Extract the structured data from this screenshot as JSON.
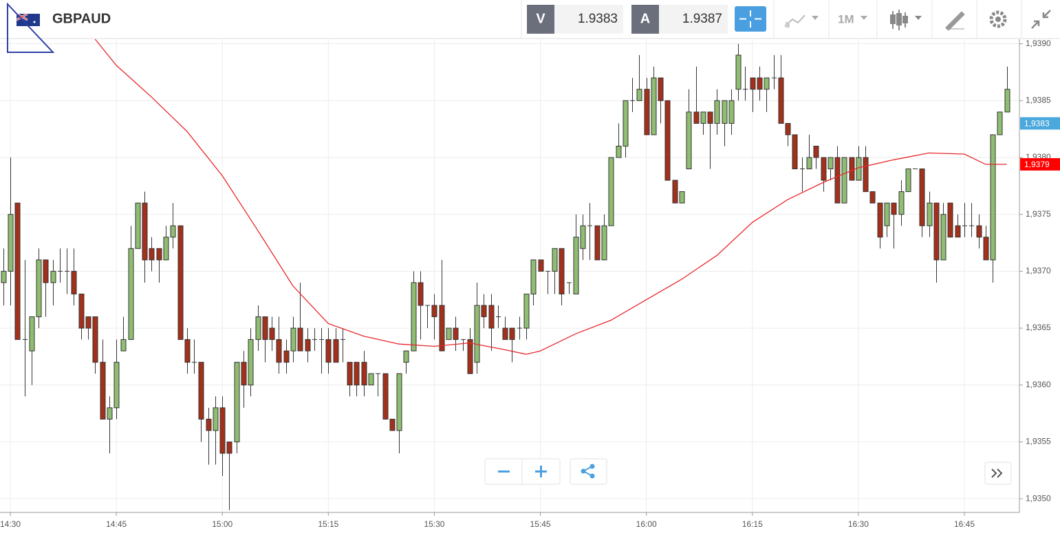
{
  "toolbar": {
    "symbol": "GBPAUD",
    "bid_label": "V",
    "bid": "1.9383",
    "ask_label": "A",
    "ask": "1.9387",
    "timeframe": "1M"
  },
  "chart_data": {
    "type": "candlestick",
    "ylim": [
      1.93488,
      1.93904
    ],
    "yticks": [
      {
        "value": 1.935,
        "label": "1,9350"
      },
      {
        "value": 1.9355,
        "label": "1,9355"
      },
      {
        "value": 1.936,
        "label": "1,9360"
      },
      {
        "value": 1.9365,
        "label": "1,9365"
      },
      {
        "value": 1.937,
        "label": "1,9370"
      },
      {
        "value": 1.9375,
        "label": "1,9375"
      },
      {
        "value": 1.938,
        "label": "1,9380"
      },
      {
        "value": 1.9385,
        "label": "1,9385"
      },
      {
        "value": 1.939,
        "label": "1,9390"
      }
    ],
    "xticks": [
      "14:30",
      "14:45",
      "15:00",
      "15:15",
      "15:30",
      "15:45",
      "16:00",
      "16:15",
      "16:30",
      "16:45"
    ],
    "grid": true,
    "up_color": "#8fbd72",
    "down_color": "#a3301b",
    "candles": {
      "x": [
        "14:29",
        "14:30",
        "14:31",
        "14:32",
        "14:33",
        "14:34",
        "14:35",
        "14:36",
        "14:37",
        "14:38",
        "14:39",
        "14:40",
        "14:41",
        "14:42",
        "14:43",
        "14:44",
        "14:45",
        "14:46",
        "14:47",
        "14:48",
        "14:49",
        "14:50",
        "14:51",
        "14:52",
        "14:53",
        "14:54",
        "14:55",
        "14:56",
        "14:57",
        "14:58",
        "14:59",
        "15:00",
        "15:01",
        "15:02",
        "15:03",
        "15:04",
        "15:05",
        "15:06",
        "15:07",
        "15:08",
        "15:09",
        "15:10",
        "15:11",
        "15:12",
        "15:13",
        "15:14",
        "15:15",
        "15:16",
        "15:17",
        "15:18",
        "15:19",
        "15:20",
        "15:21",
        "15:22",
        "15:23",
        "15:24",
        "15:25",
        "15:26",
        "15:27",
        "15:28",
        "15:29",
        "15:30",
        "15:31",
        "15:32",
        "15:33",
        "15:34",
        "15:35",
        "15:36",
        "15:37",
        "15:38",
        "15:39",
        "15:40",
        "15:41",
        "15:42",
        "15:43",
        "15:44",
        "15:45",
        "15:46",
        "15:47",
        "15:48",
        "15:49",
        "15:50",
        "15:51",
        "15:52",
        "15:53",
        "15:54",
        "15:55",
        "15:56",
        "15:57",
        "15:58",
        "15:59",
        "16:00",
        "16:01",
        "16:02",
        "16:03",
        "16:04",
        "16:05",
        "16:06",
        "16:07",
        "16:08",
        "16:09",
        "16:10",
        "16:11",
        "16:12",
        "16:13",
        "16:14",
        "16:15",
        "16:16",
        "16:17",
        "16:18",
        "16:19",
        "16:20",
        "16:21",
        "16:22",
        "16:23",
        "16:24",
        "16:25",
        "16:26",
        "16:27",
        "16:28",
        "16:29",
        "16:30",
        "16:31",
        "16:32",
        "16:33",
        "16:34",
        "16:35",
        "16:36",
        "16:37",
        "16:38",
        "16:39",
        "16:40",
        "16:41",
        "16:42",
        "16:43",
        "16:44",
        "16:45",
        "16:46",
        "16:47",
        "16:48",
        "16:49",
        "16:50",
        "16:51"
      ],
      "open": [
        1.9369,
        1.937,
        1.9376,
        1.9364,
        1.9363,
        1.9366,
        1.9371,
        1.9369,
        1.937,
        1.937,
        1.937,
        1.9368,
        1.9366,
        1.9366,
        1.9362,
        1.9357,
        1.9358,
        1.9363,
        1.9364,
        1.9372,
        1.9376,
        1.9372,
        1.9372,
        1.9371,
        1.9373,
        1.9374,
        1.9364,
        1.9362,
        1.9362,
        1.9357,
        1.9356,
        1.9358,
        1.9355,
        1.9355,
        1.9362,
        1.936,
        1.9364,
        1.9366,
        1.9365,
        1.9364,
        1.9363,
        1.9363,
        1.9365,
        1.9364,
        1.9364,
        1.9364,
        1.9364,
        1.9364,
        1.9364,
        1.9362,
        1.9362,
        1.9362,
        1.936,
        1.9361,
        1.9361,
        1.9357,
        1.9356,
        1.9362,
        1.9363,
        1.9369,
        1.9367,
        1.9367,
        1.9367,
        1.9364,
        1.9365,
        1.9364,
        1.9364,
        1.9362,
        1.9367,
        1.9367,
        1.9366,
        1.9365,
        1.9365,
        1.9365,
        1.9365,
        1.9368,
        1.9371,
        1.937,
        1.937,
        1.9372,
        1.9369,
        1.9368,
        1.9372,
        1.9374,
        1.9374,
        1.9371,
        1.9374,
        1.938,
        1.9381,
        1.9385,
        1.9385,
        1.9386,
        1.9382,
        1.9387,
        1.9385,
        1.9378,
        1.9376,
        1.9379,
        1.9384,
        1.9383,
        1.9384,
        1.9383,
        1.9383,
        1.9383,
        1.9386,
        1.9386,
        1.9387,
        1.9387,
        1.9386,
        1.9387,
        1.9387,
        1.9383,
        1.9382,
        1.9379,
        1.9379,
        1.9381,
        1.938,
        1.9379,
        1.938,
        1.9376,
        1.938,
        1.9378,
        1.938,
        1.9377,
        1.9376,
        1.9374,
        1.9376,
        1.9375,
        1.9377,
        1.9379,
        1.9379,
        1.9374,
        1.9376,
        1.9371,
        1.9376,
        1.9374,
        1.9374,
        1.9374,
        1.9374,
        1.9373,
        1.9371,
        1.9382,
        1.9384
      ],
      "high": [
        1.9372,
        1.938,
        1.9376,
        1.9371,
        1.9366,
        1.9372,
        1.9371,
        1.9371,
        1.9372,
        1.9372,
        1.9372,
        1.9368,
        1.9366,
        1.9366,
        1.9364,
        1.9359,
        1.9364,
        1.9366,
        1.9374,
        1.9376,
        1.9377,
        1.9373,
        1.9372,
        1.9374,
        1.9376,
        1.9374,
        1.9365,
        1.9364,
        1.9362,
        1.9358,
        1.9359,
        1.9359,
        1.9355,
        1.9362,
        1.9363,
        1.9365,
        1.9367,
        1.9366,
        1.9366,
        1.9366,
        1.9364,
        1.9366,
        1.9369,
        1.9365,
        1.9365,
        1.9365,
        1.9365,
        1.9365,
        1.9365,
        1.9362,
        1.9362,
        1.9363,
        1.9361,
        1.9361,
        1.9361,
        1.9357,
        1.9361,
        1.9363,
        1.937,
        1.937,
        1.9367,
        1.9368,
        1.9371,
        1.9365,
        1.9366,
        1.9364,
        1.9365,
        1.9369,
        1.9368,
        1.9368,
        1.9367,
        1.9366,
        1.9365,
        1.9366,
        1.9368,
        1.9371,
        1.9371,
        1.937,
        1.9372,
        1.9372,
        1.9369,
        1.9375,
        1.9375,
        1.9376,
        1.9374,
        1.9375,
        1.938,
        1.9383,
        1.9385,
        1.9387,
        1.9389,
        1.9387,
        1.9388,
        1.9387,
        1.9385,
        1.9378,
        1.9377,
        1.9386,
        1.9388,
        1.9384,
        1.9384,
        1.9386,
        1.9385,
        1.9386,
        1.939,
        1.9388,
        1.9387,
        1.9388,
        1.9387,
        1.9389,
        1.9389,
        1.9383,
        1.9382,
        1.938,
        1.9382,
        1.9381,
        1.938,
        1.938,
        1.9381,
        1.938,
        1.938,
        1.9381,
        1.9381,
        1.9377,
        1.9376,
        1.9376,
        1.9376,
        1.9378,
        1.9379,
        1.9379,
        1.9379,
        1.9377,
        1.9376,
        1.9376,
        1.9376,
        1.9375,
        1.9376,
        1.9376,
        1.9375,
        1.9374,
        1.9382,
        1.9384,
        1.9388
      ],
      "low": [
        1.9367,
        1.9367,
        1.9364,
        1.9359,
        1.936,
        1.9365,
        1.9366,
        1.9367,
        1.9369,
        1.9368,
        1.9367,
        1.9364,
        1.9364,
        1.9361,
        1.9357,
        1.9354,
        1.9357,
        1.9363,
        1.9364,
        1.9372,
        1.9369,
        1.937,
        1.9369,
        1.9371,
        1.9372,
        1.9364,
        1.9361,
        1.9361,
        1.9355,
        1.9353,
        1.9353,
        1.9352,
        1.9349,
        1.9354,
        1.9358,
        1.9359,
        1.9363,
        1.9362,
        1.9363,
        1.9361,
        1.9361,
        1.9362,
        1.9363,
        1.9362,
        1.9363,
        1.9361,
        1.9361,
        1.9362,
        1.9362,
        1.9359,
        1.9359,
        1.9359,
        1.936,
        1.9359,
        1.9357,
        1.9356,
        1.9354,
        1.9361,
        1.9363,
        1.9364,
        1.9365,
        1.9364,
        1.9363,
        1.9364,
        1.9363,
        1.9363,
        1.9361,
        1.9361,
        1.9365,
        1.9363,
        1.9365,
        1.9364,
        1.9362,
        1.9364,
        1.9364,
        1.9367,
        1.937,
        1.9368,
        1.9368,
        1.9367,
        1.9368,
        1.9368,
        1.9371,
        1.9371,
        1.9371,
        1.9371,
        1.9374,
        1.938,
        1.938,
        1.9384,
        1.9385,
        1.9382,
        1.9382,
        1.9383,
        1.9378,
        1.9376,
        1.9376,
        1.9379,
        1.9383,
        1.9382,
        1.9379,
        1.9382,
        1.9381,
        1.9382,
        1.9385,
        1.9385,
        1.9384,
        1.9385,
        1.9384,
        1.9386,
        1.9383,
        1.9381,
        1.9379,
        1.9377,
        1.9379,
        1.9379,
        1.9377,
        1.9378,
        1.9376,
        1.9376,
        1.9378,
        1.9378,
        1.9377,
        1.9376,
        1.9372,
        1.9373,
        1.9372,
        1.9374,
        1.9377,
        1.9379,
        1.9373,
        1.9373,
        1.9369,
        1.9371,
        1.9373,
        1.9373,
        1.9373,
        1.9373,
        1.9372,
        1.9371,
        1.9369,
        1.9382,
        1.9384
      ],
      "close": [
        1.937,
        1.9375,
        1.9364,
        1.9364,
        1.9366,
        1.9371,
        1.9369,
        1.937,
        1.937,
        1.937,
        1.9368,
        1.9365,
        1.9365,
        1.9362,
        1.9357,
        1.9358,
        1.9362,
        1.9364,
        1.9372,
        1.9376,
        1.9371,
        1.9371,
        1.9371,
        1.9373,
        1.9374,
        1.9364,
        1.9362,
        1.9362,
        1.9357,
        1.9356,
        1.9358,
        1.9354,
        1.9354,
        1.9362,
        1.936,
        1.9364,
        1.9366,
        1.9364,
        1.9364,
        1.9362,
        1.9362,
        1.9365,
        1.9363,
        1.9363,
        1.9364,
        1.9364,
        1.9362,
        1.9362,
        1.9364,
        1.936,
        1.936,
        1.936,
        1.9361,
        1.9361,
        1.9357,
        1.9356,
        1.9361,
        1.9363,
        1.9369,
        1.9367,
        1.9367,
        1.9366,
        1.9363,
        1.9365,
        1.9364,
        1.9364,
        1.9361,
        1.9367,
        1.9366,
        1.9365,
        1.9366,
        1.9364,
        1.9364,
        1.9365,
        1.9368,
        1.9371,
        1.937,
        1.937,
        1.9372,
        1.9368,
        1.9369,
        1.9373,
        1.9374,
        1.9374,
        1.9371,
        1.9374,
        1.938,
        1.9381,
        1.9385,
        1.9385,
        1.9386,
        1.9382,
        1.9387,
        1.9385,
        1.9378,
        1.9376,
        1.9377,
        1.9384,
        1.9383,
        1.9384,
        1.9383,
        1.9385,
        1.9385,
        1.9385,
        1.9389,
        1.9386,
        1.9386,
        1.9386,
        1.9387,
        1.9387,
        1.9383,
        1.9382,
        1.9379,
        1.9379,
        1.938,
        1.938,
        1.9378,
        1.938,
        1.9376,
        1.938,
        1.9378,
        1.938,
        1.9377,
        1.9376,
        1.9373,
        1.9376,
        1.9375,
        1.9377,
        1.9379,
        1.9379,
        1.9374,
        1.9376,
        1.9371,
        1.9375,
        1.9373,
        1.9373,
        1.9374,
        1.9374,
        1.9373,
        1.9371,
        1.9382,
        1.9384,
        1.9386
      ]
    },
    "ma": {
      "color": "#e8262a",
      "x": [
        "14:42",
        "14:45",
        "14:50",
        "14:55",
        "15:00",
        "15:05",
        "15:10",
        "15:15",
        "15:20",
        "15:25",
        "15:30",
        "15:35",
        "15:40",
        "15:43",
        "15:45",
        "15:50",
        "15:55",
        "16:00",
        "16:05",
        "16:10",
        "16:15",
        "16:20",
        "16:25",
        "16:30",
        "16:35",
        "16:40",
        "16:45",
        "16:48",
        "16:51"
      ],
      "values": [
        1.93904,
        1.93881,
        1.93853,
        1.93823,
        1.93784,
        1.93736,
        1.93687,
        1.93654,
        1.93643,
        1.93636,
        1.93634,
        1.93637,
        1.93631,
        1.93627,
        1.9363,
        1.93645,
        1.93657,
        1.93675,
        1.93693,
        1.93714,
        1.93743,
        1.93763,
        1.93778,
        1.93791,
        1.93798,
        1.93804,
        1.93803,
        1.93794,
        1.93794
      ]
    },
    "price_tags": [
      {
        "value": 1.9383,
        "label": "1,9383",
        "color": "#4aa8dc"
      },
      {
        "value": 1.93794,
        "label": "1,9379",
        "color": "#ff0000"
      }
    ]
  }
}
